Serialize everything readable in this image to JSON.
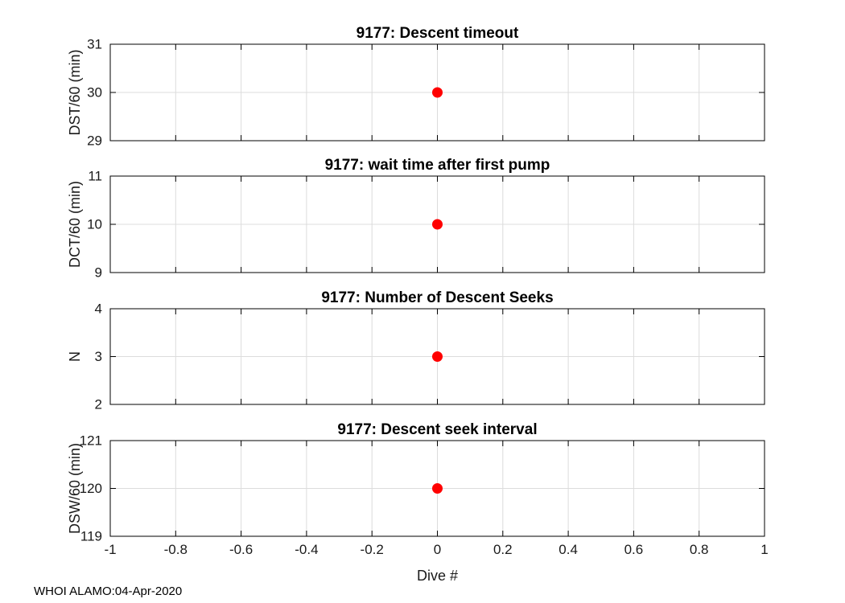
{
  "footer": "WHOI ALAMO:04-Apr-2020",
  "colors": {
    "marker": "#ff0000",
    "grid": "#dcdcdc",
    "axes": "#000000"
  },
  "chart_data": [
    {
      "type": "scatter",
      "title": "9177: Descent timeout",
      "ylabel": "DST/60 (min)",
      "xlabel": "",
      "xlim": [
        -1,
        1
      ],
      "ylim": [
        29,
        31
      ],
      "xticks": [
        -1,
        -0.8,
        -0.6,
        -0.4,
        -0.2,
        0,
        0.2,
        0.4,
        0.6,
        0.8,
        1
      ],
      "yticks": [
        29,
        30,
        31
      ],
      "show_xtick_labels": false,
      "grid": true,
      "series": [
        {
          "x": [
            0
          ],
          "y": [
            30
          ]
        }
      ]
    },
    {
      "type": "scatter",
      "title": "9177: wait time after first pump",
      "ylabel": "DCT/60 (min)",
      "xlabel": "",
      "xlim": [
        -1,
        1
      ],
      "ylim": [
        9,
        11
      ],
      "xticks": [
        -1,
        -0.8,
        -0.6,
        -0.4,
        -0.2,
        0,
        0.2,
        0.4,
        0.6,
        0.8,
        1
      ],
      "yticks": [
        9,
        10,
        11
      ],
      "show_xtick_labels": false,
      "grid": true,
      "series": [
        {
          "x": [
            0
          ],
          "y": [
            10
          ]
        }
      ]
    },
    {
      "type": "scatter",
      "title": "9177: Number of Descent Seeks",
      "ylabel": "N",
      "xlabel": "",
      "xlim": [
        -1,
        1
      ],
      "ylim": [
        2,
        4
      ],
      "xticks": [
        -1,
        -0.8,
        -0.6,
        -0.4,
        -0.2,
        0,
        0.2,
        0.4,
        0.6,
        0.8,
        1
      ],
      "yticks": [
        2,
        3,
        4
      ],
      "show_xtick_labels": false,
      "grid": true,
      "series": [
        {
          "x": [
            0
          ],
          "y": [
            3
          ]
        }
      ]
    },
    {
      "type": "scatter",
      "title": "9177: Descent seek interval",
      "ylabel": "DSW/60 (min)",
      "xlabel": "Dive #",
      "xlim": [
        -1,
        1
      ],
      "ylim": [
        119,
        121
      ],
      "xticks": [
        -1,
        -0.8,
        -0.6,
        -0.4,
        -0.2,
        0,
        0.2,
        0.4,
        0.6,
        0.8,
        1
      ],
      "yticks": [
        119,
        120,
        121
      ],
      "show_xtick_labels": true,
      "grid": true,
      "series": [
        {
          "x": [
            0
          ],
          "y": [
            120
          ]
        }
      ]
    }
  ]
}
